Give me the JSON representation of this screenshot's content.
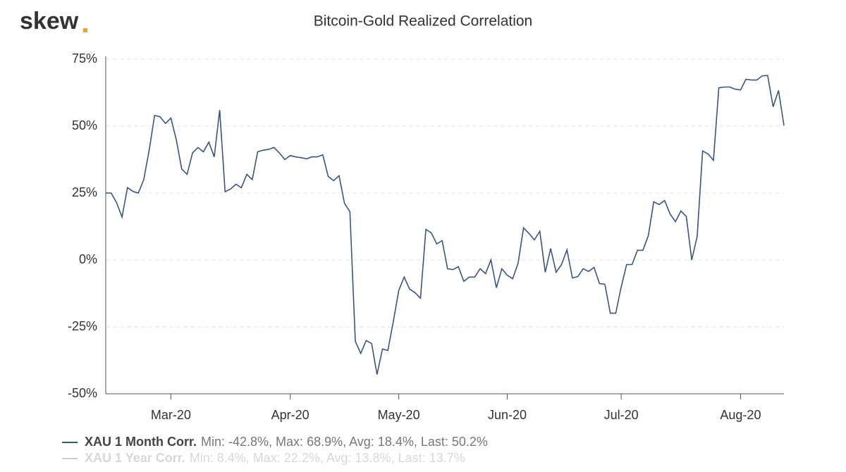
{
  "brand": "skew",
  "chart_data": {
    "type": "line",
    "title": "Bitcoin-Gold Realized Correlation",
    "categories": [
      null,
      null,
      null,
      null,
      null,
      null,
      null,
      null,
      null,
      null,
      null,
      null,
      "Mar-20",
      null,
      null,
      null,
      null,
      null,
      null,
      null,
      null,
      null,
      null,
      null,
      null,
      null,
      null,
      null,
      null,
      null,
      null,
      null,
      null,
      null,
      "Apr-20",
      null,
      null,
      null,
      null,
      null,
      null,
      null,
      null,
      null,
      null,
      null,
      null,
      null,
      null,
      null,
      null,
      null,
      null,
      null,
      "May-20",
      null,
      null,
      null,
      null,
      null,
      null,
      null,
      null,
      null,
      null,
      null,
      null,
      null,
      null,
      null,
      null,
      null,
      null,
      null,
      "Jun-20",
      null,
      null,
      null,
      null,
      null,
      null,
      null,
      null,
      null,
      null,
      null,
      null,
      null,
      null,
      null,
      null,
      null,
      null,
      null,
      null,
      "Jul-20",
      null,
      null,
      null,
      null,
      null,
      null,
      null,
      null,
      null,
      null,
      null,
      null,
      null,
      null,
      null,
      null,
      null,
      null,
      null,
      null,
      null,
      "Aug-20",
      null,
      null,
      null,
      null,
      null,
      null,
      null,
      null
    ],
    "series": [
      {
        "name": "XAU 1 Month Corr.",
        "color": "#3b5583",
        "summary": "Min: -42.8%, Max: 68.9%, Avg: 18.4%, Last: 50.2%",
        "values": [
          25,
          25,
          21.4,
          16,
          27,
          25.6,
          25,
          30,
          41,
          54,
          53.5,
          51,
          53,
          45,
          34,
          32,
          40,
          42,
          40.4,
          44,
          38.5,
          56,
          25.5,
          26.5,
          28.3,
          27,
          32,
          30,
          40.4,
          41,
          41.3,
          42,
          40,
          37.5,
          39,
          38.5,
          38.2,
          37.8,
          38.5,
          38.5,
          39.3,
          31.2,
          29.6,
          31.5,
          21.2,
          18,
          -30.4,
          -34.9,
          -30.1,
          -31.2,
          -42.8,
          -33.3,
          -33.8,
          -23,
          -11.4,
          -6.4,
          -10.9,
          -12.2,
          -14.3,
          11.4,
          10.1,
          6,
          7.2,
          -3.3,
          -3.6,
          -2.5,
          -8,
          -6.4,
          -6.4,
          -3.3,
          -5.1,
          0,
          -10.4,
          -3.3,
          -5.7,
          -7,
          -1.2,
          12,
          9.9,
          7.5,
          10.7,
          -4.6,
          4.3,
          -4.6,
          -1.7,
          3.8,
          -6.7,
          -6.2,
          -3.3,
          -4.3,
          -2.8,
          -8.8,
          -9.1,
          -19.9,
          -19.9,
          -10.1,
          -1.7,
          -1.7,
          3.6,
          3.6,
          9.1,
          21.7,
          20.7,
          22.2,
          17.2,
          14.3,
          18.3,
          16.2,
          0,
          8.8,
          40.7,
          39.6,
          37.2,
          64.3,
          64.6,
          64.6,
          63.8,
          63.5,
          67.5,
          67.2,
          67.2,
          68.8,
          68.9,
          57.2,
          63.3,
          50.2
        ]
      },
      {
        "name": "XAU 1 Year Corr.",
        "color": "#cccccc",
        "hidden": true,
        "summary": "Min: 8.4%, Max: 22.2%, Avg: 13.8%, Last: 13.7%"
      }
    ],
    "ylim": [
      -50,
      75
    ],
    "yticks": [
      {
        "value": -50,
        "label": "-50%"
      },
      {
        "value": -25,
        "label": "-25%"
      },
      {
        "value": 0,
        "label": "0%"
      },
      {
        "value": 25,
        "label": "25%"
      },
      {
        "value": 50,
        "label": "50%"
      },
      {
        "value": 75,
        "label": "75%"
      }
    ],
    "grid": true
  }
}
